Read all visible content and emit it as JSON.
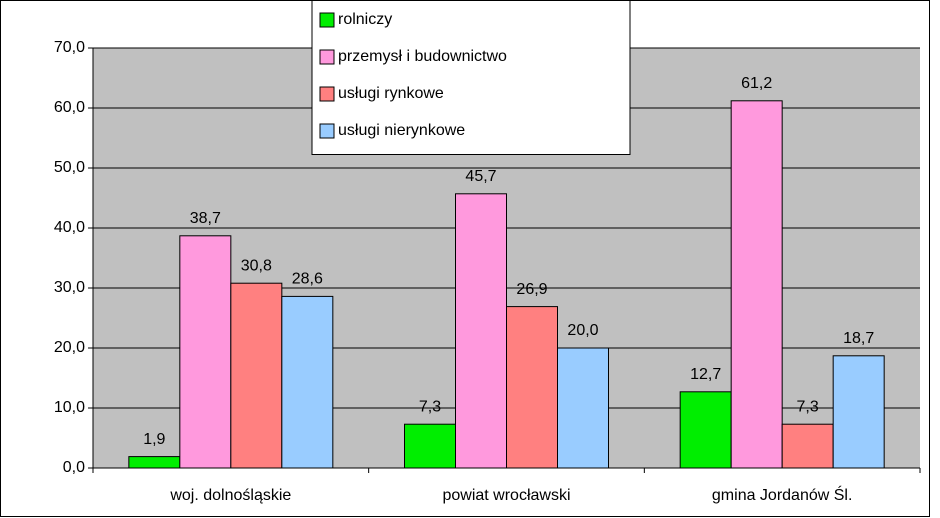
{
  "chart_data": {
    "type": "bar",
    "categories": [
      "woj. dolnośląskie",
      "powiat wrocławski",
      "gmina Jordanów Śl."
    ],
    "series": [
      {
        "name": "rolniczy",
        "color": "#00ee00",
        "values": [
          1.9,
          7.3,
          12.7
        ],
        "value_labels": [
          "1,9",
          "7,3",
          "12,7"
        ]
      },
      {
        "name": "przemysł i budownictwo",
        "color": "#ff99dd",
        "values": [
          38.7,
          45.7,
          61.2
        ],
        "value_labels": [
          "38,7",
          "45,7",
          "61,2"
        ]
      },
      {
        "name": "usługi rynkowe",
        "color": "#ff8080",
        "values": [
          30.8,
          26.9,
          7.3
        ],
        "value_labels": [
          "30,8",
          "26,9",
          "7,3"
        ]
      },
      {
        "name": "usługi nierynkowe",
        "color": "#99ccff",
        "values": [
          28.6,
          20.0,
          18.7
        ],
        "value_labels": [
          "28,6",
          "20,0",
          "18,7"
        ]
      }
    ],
    "ylim": [
      0,
      70
    ],
    "yticks": [
      {
        "value": 0,
        "label": "0,0"
      },
      {
        "value": 10,
        "label": "10,0"
      },
      {
        "value": 20,
        "label": "20,0"
      },
      {
        "value": 30,
        "label": "30,0"
      },
      {
        "value": 40,
        "label": "40,0"
      },
      {
        "value": 50,
        "label": "50,0"
      },
      {
        "value": 60,
        "label": "60,0"
      },
      {
        "value": 70,
        "label": "70,0"
      }
    ],
    "grid": true,
    "legend": "top"
  }
}
